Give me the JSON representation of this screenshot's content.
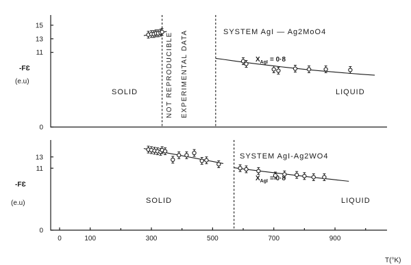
{
  "chart_data": [
    {
      "type": "scatter",
      "panel": "top",
      "ylabel": "-FƐ",
      "yunit": "(e.u)",
      "ylim": [
        0,
        16.5
      ],
      "yticks": [
        "15",
        "13",
        "11",
        "0"
      ],
      "system_label": "SYSTEM AgI — Ag2MoO4",
      "composition_label": "X",
      "composition_sub": "AgI",
      "composition_value": "= 0·8",
      "solid_label": "SOLID",
      "liquid_label": "LIQUID",
      "note_line1": "NOT REPRODUCIBLE",
      "note_line2": "EXPERIMENTAL DATA",
      "boundaries": [
        335,
        510
      ],
      "series": [
        {
          "phase": "solid",
          "x": [
            290,
            300,
            308,
            315,
            322,
            330,
            335
          ],
          "y": [
            13.6,
            13.7,
            13.7,
            13.8,
            13.8,
            13.9,
            14.0
          ]
        },
        {
          "phase": "liquid",
          "x": [
            600,
            610,
            700,
            715,
            770,
            815,
            870,
            950
          ],
          "y": [
            9.7,
            9.3,
            8.5,
            8.3,
            8.6,
            8.5,
            8.5,
            8.4
          ]
        }
      ]
    },
    {
      "type": "scatter",
      "panel": "bottom",
      "ylabel": "-FƐ",
      "yunit": "(e.u)",
      "ylim": [
        0,
        16
      ],
      "yticks": [
        "13",
        "11",
        "0"
      ],
      "system_label": "SYSTEM AgI-Ag2WO4",
      "composition_label": "X",
      "composition_sub": "AgI",
      "composition_value": "= 0·8",
      "solid_label": "SOLID",
      "liquid_label": "LIQUID",
      "boundaries": [
        570
      ],
      "xlabel": "T(°K)",
      "xticks": [
        "0",
        "100",
        "300",
        "500",
        "700",
        "900"
      ],
      "series": [
        {
          "phase": "solid",
          "x": [
            290,
            300,
            310,
            320,
            330,
            335,
            345,
            370,
            390,
            415,
            440,
            465,
            480,
            520
          ],
          "y": [
            14.3,
            14.2,
            14.1,
            14.0,
            13.9,
            14.2,
            14.0,
            12.5,
            13.3,
            13.3,
            13.7,
            12.3,
            12.4,
            11.7
          ]
        },
        {
          "phase": "liquid",
          "x": [
            590,
            610,
            650,
            705,
            735,
            775,
            800,
            830,
            865
          ],
          "y": [
            11.0,
            10.8,
            10.5,
            9.7,
            9.9,
            9.8,
            9.6,
            9.4,
            9.4
          ]
        }
      ]
    }
  ]
}
